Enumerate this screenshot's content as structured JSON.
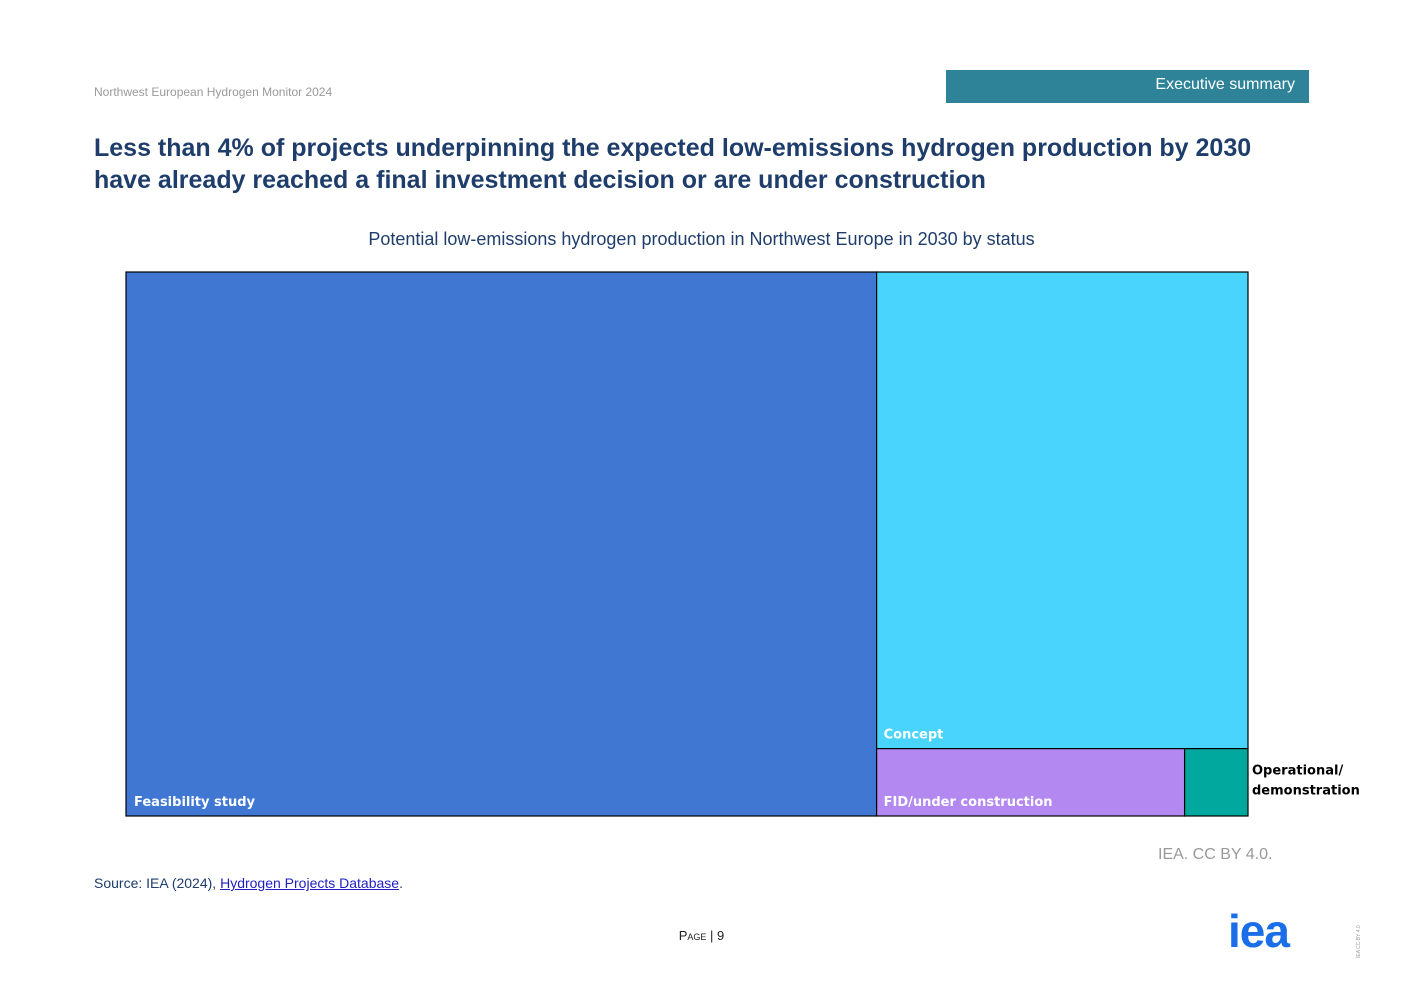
{
  "header": {
    "doc_title": "Northwest European Hydrogen Monitor 2024",
    "section_tab": "Executive summary",
    "headline": "Less than 4% of projects underpinning the expected low-emissions hydrogen production by 2030 have already reached a final investment decision or are under construction"
  },
  "chart_data": {
    "type": "treemap",
    "title": "Potential low-emissions hydrogen production in Northwest Europe in 2030 by status",
    "share_unit": "%",
    "categories": [
      "Feasibility study",
      "Concept",
      "FID/under construction",
      "Operational/ demonstration"
    ],
    "series": [
      {
        "name": "Feasibility study",
        "value": 66.9,
        "color": "#3f77d3",
        "label_color": "#ffffff"
      },
      {
        "name": "Concept",
        "value": 29.0,
        "color": "#48d4fc",
        "label_color": "#ffffff"
      },
      {
        "name": "FID/under construction",
        "value": 3.4,
        "color": "#b388f0",
        "label_color": "#ffffff"
      },
      {
        "name": "Operational/ demonstration",
        "value": 0.7,
        "color": "#00a89d",
        "label_color": "#000000"
      }
    ]
  },
  "footer": {
    "credit": "IEA. CC BY 4.0.",
    "source_prefix": "Source: IEA (2024), ",
    "source_link": "Hydrogen Projects Database",
    "source_suffix": ".",
    "page_word": "Page",
    "page_sep": " | ",
    "page_number": "9",
    "logo_text": "iea",
    "side_license": "IEA CC BY 4.0"
  }
}
